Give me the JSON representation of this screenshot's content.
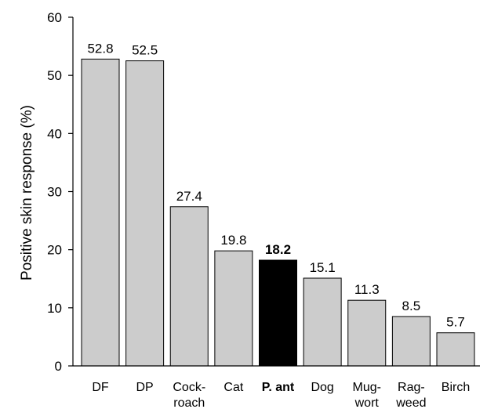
{
  "chart_data": {
    "type": "bar",
    "title": "",
    "xlabel": "",
    "ylabel": "Positive skin response (%)",
    "ylim": [
      0,
      60
    ],
    "yticks": [
      0,
      10,
      20,
      30,
      40,
      50,
      60
    ],
    "categories": [
      [
        "DF"
      ],
      [
        "DP"
      ],
      [
        "Cock-",
        "roach"
      ],
      [
        "Cat"
      ],
      [
        "P. ant"
      ],
      [
        "Dog"
      ],
      [
        "Mug-",
        "wort"
      ],
      [
        "Rag-",
        "weed"
      ],
      [
        "Birch"
      ]
    ],
    "values": [
      52.8,
      52.5,
      27.4,
      19.8,
      18.2,
      15.1,
      11.3,
      8.5,
      5.7
    ],
    "value_labels": [
      "52.8",
      "52.5",
      "27.4",
      "19.8",
      "18.2",
      "15.1",
      "11.3",
      "8.5",
      "5.7"
    ],
    "highlight_index": 4,
    "colors": {
      "bar": "#cccccc",
      "highlight": "#000000",
      "outline": "#000000"
    }
  }
}
